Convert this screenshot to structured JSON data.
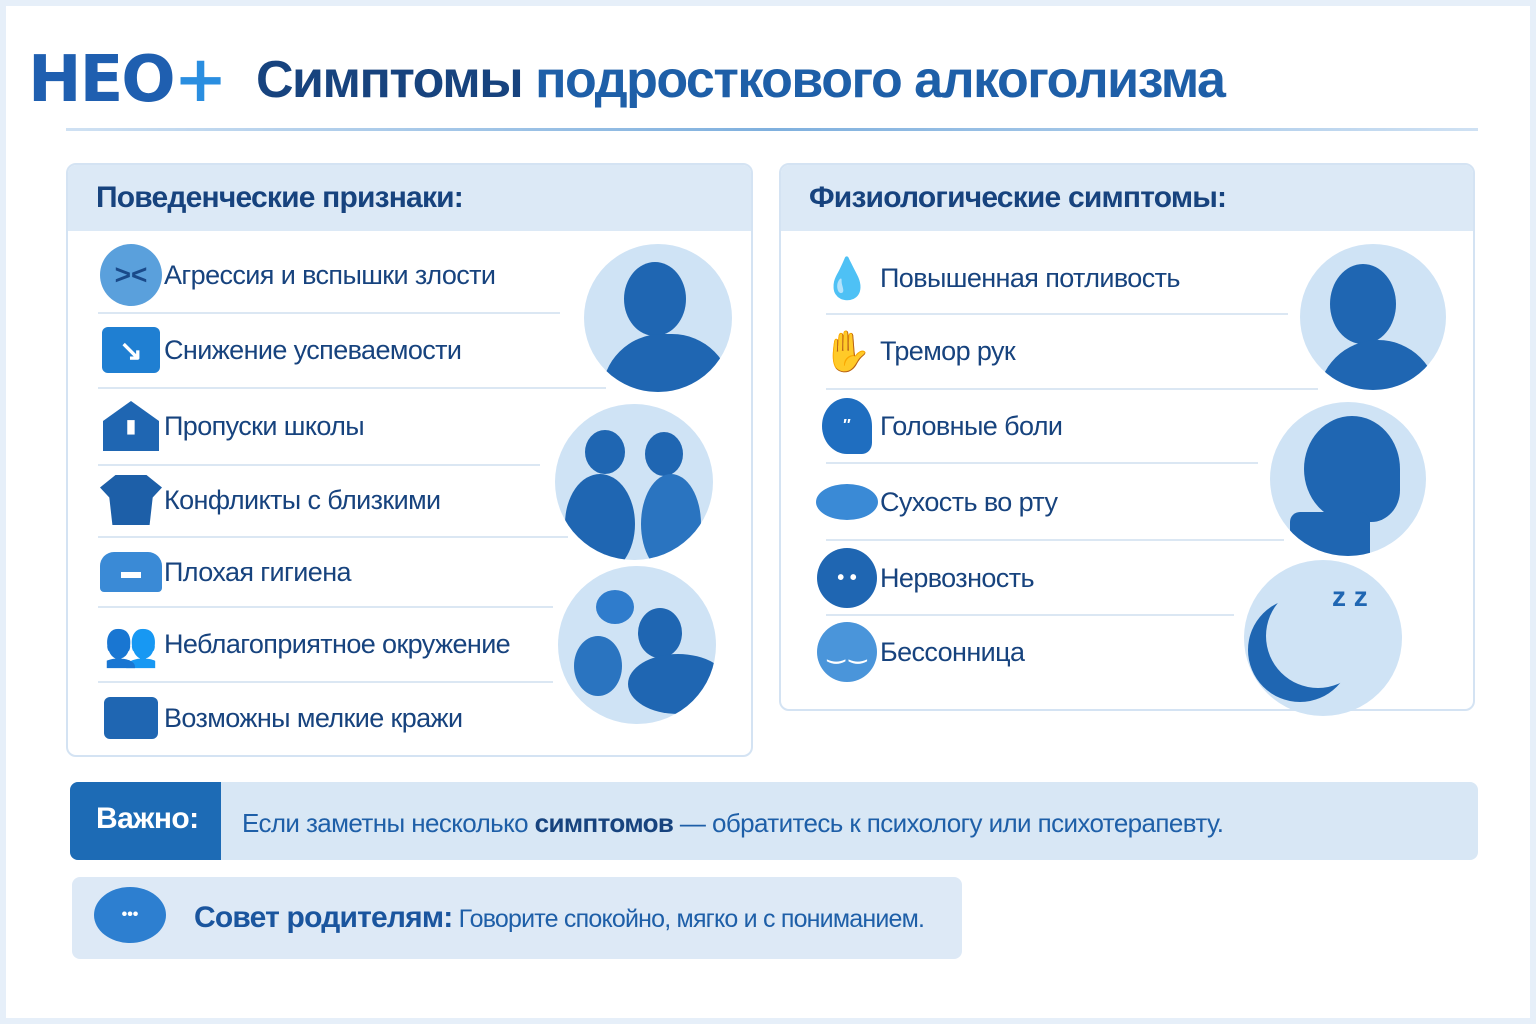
{
  "logo": {
    "text": "НЕО",
    "plus": "+"
  },
  "title": {
    "part1": "Симптомы",
    "part2": "подросткового алкоголизма"
  },
  "behavioral": {
    "heading": "Поведенческие признаки:",
    "items": [
      {
        "label": "Агрессия и вспышки злости",
        "icon": "angry-face-icon"
      },
      {
        "label": "Снижение успеваемости",
        "icon": "chart-down-icon"
      },
      {
        "label": "Пропуски школы",
        "icon": "school-icon"
      },
      {
        "label": "Конфликты с близкими",
        "icon": "shirt-icon"
      },
      {
        "label": "Плохая гигиена",
        "icon": "hygiene-icon"
      },
      {
        "label": "Неблагоприятное окружение",
        "icon": "group-icon"
      },
      {
        "label": "Возможны мелкие кражи",
        "icon": "wallet-icon"
      }
    ]
  },
  "physiological": {
    "heading": "Физиологические симптомы:",
    "items": [
      {
        "label": "Повышенная потливость",
        "icon": "drops-icon"
      },
      {
        "label": "Тремор рук",
        "icon": "shaking-hand-icon"
      },
      {
        "label": "Головные боли",
        "icon": "head-icon"
      },
      {
        "label": "Сухость во рту",
        "icon": "lips-icon"
      },
      {
        "label": "Нервозность",
        "icon": "nervous-face-icon"
      },
      {
        "label": "Бессонница",
        "icon": "sleepy-face-icon"
      }
    ]
  },
  "important": {
    "tag": "Важно:",
    "text1": "Если заметны несколько ",
    "bold": "симптомов",
    "text2": " — обратитесь к психологу или психотерапевту."
  },
  "advice": {
    "label": "Совет родителям:",
    "text": " Говорите спокойно, мягко и с пониманием.",
    "icon_text": "•••"
  },
  "colors": {
    "primary": "#1d6bb5",
    "dark": "#17437e",
    "light": "#dce9f6"
  }
}
